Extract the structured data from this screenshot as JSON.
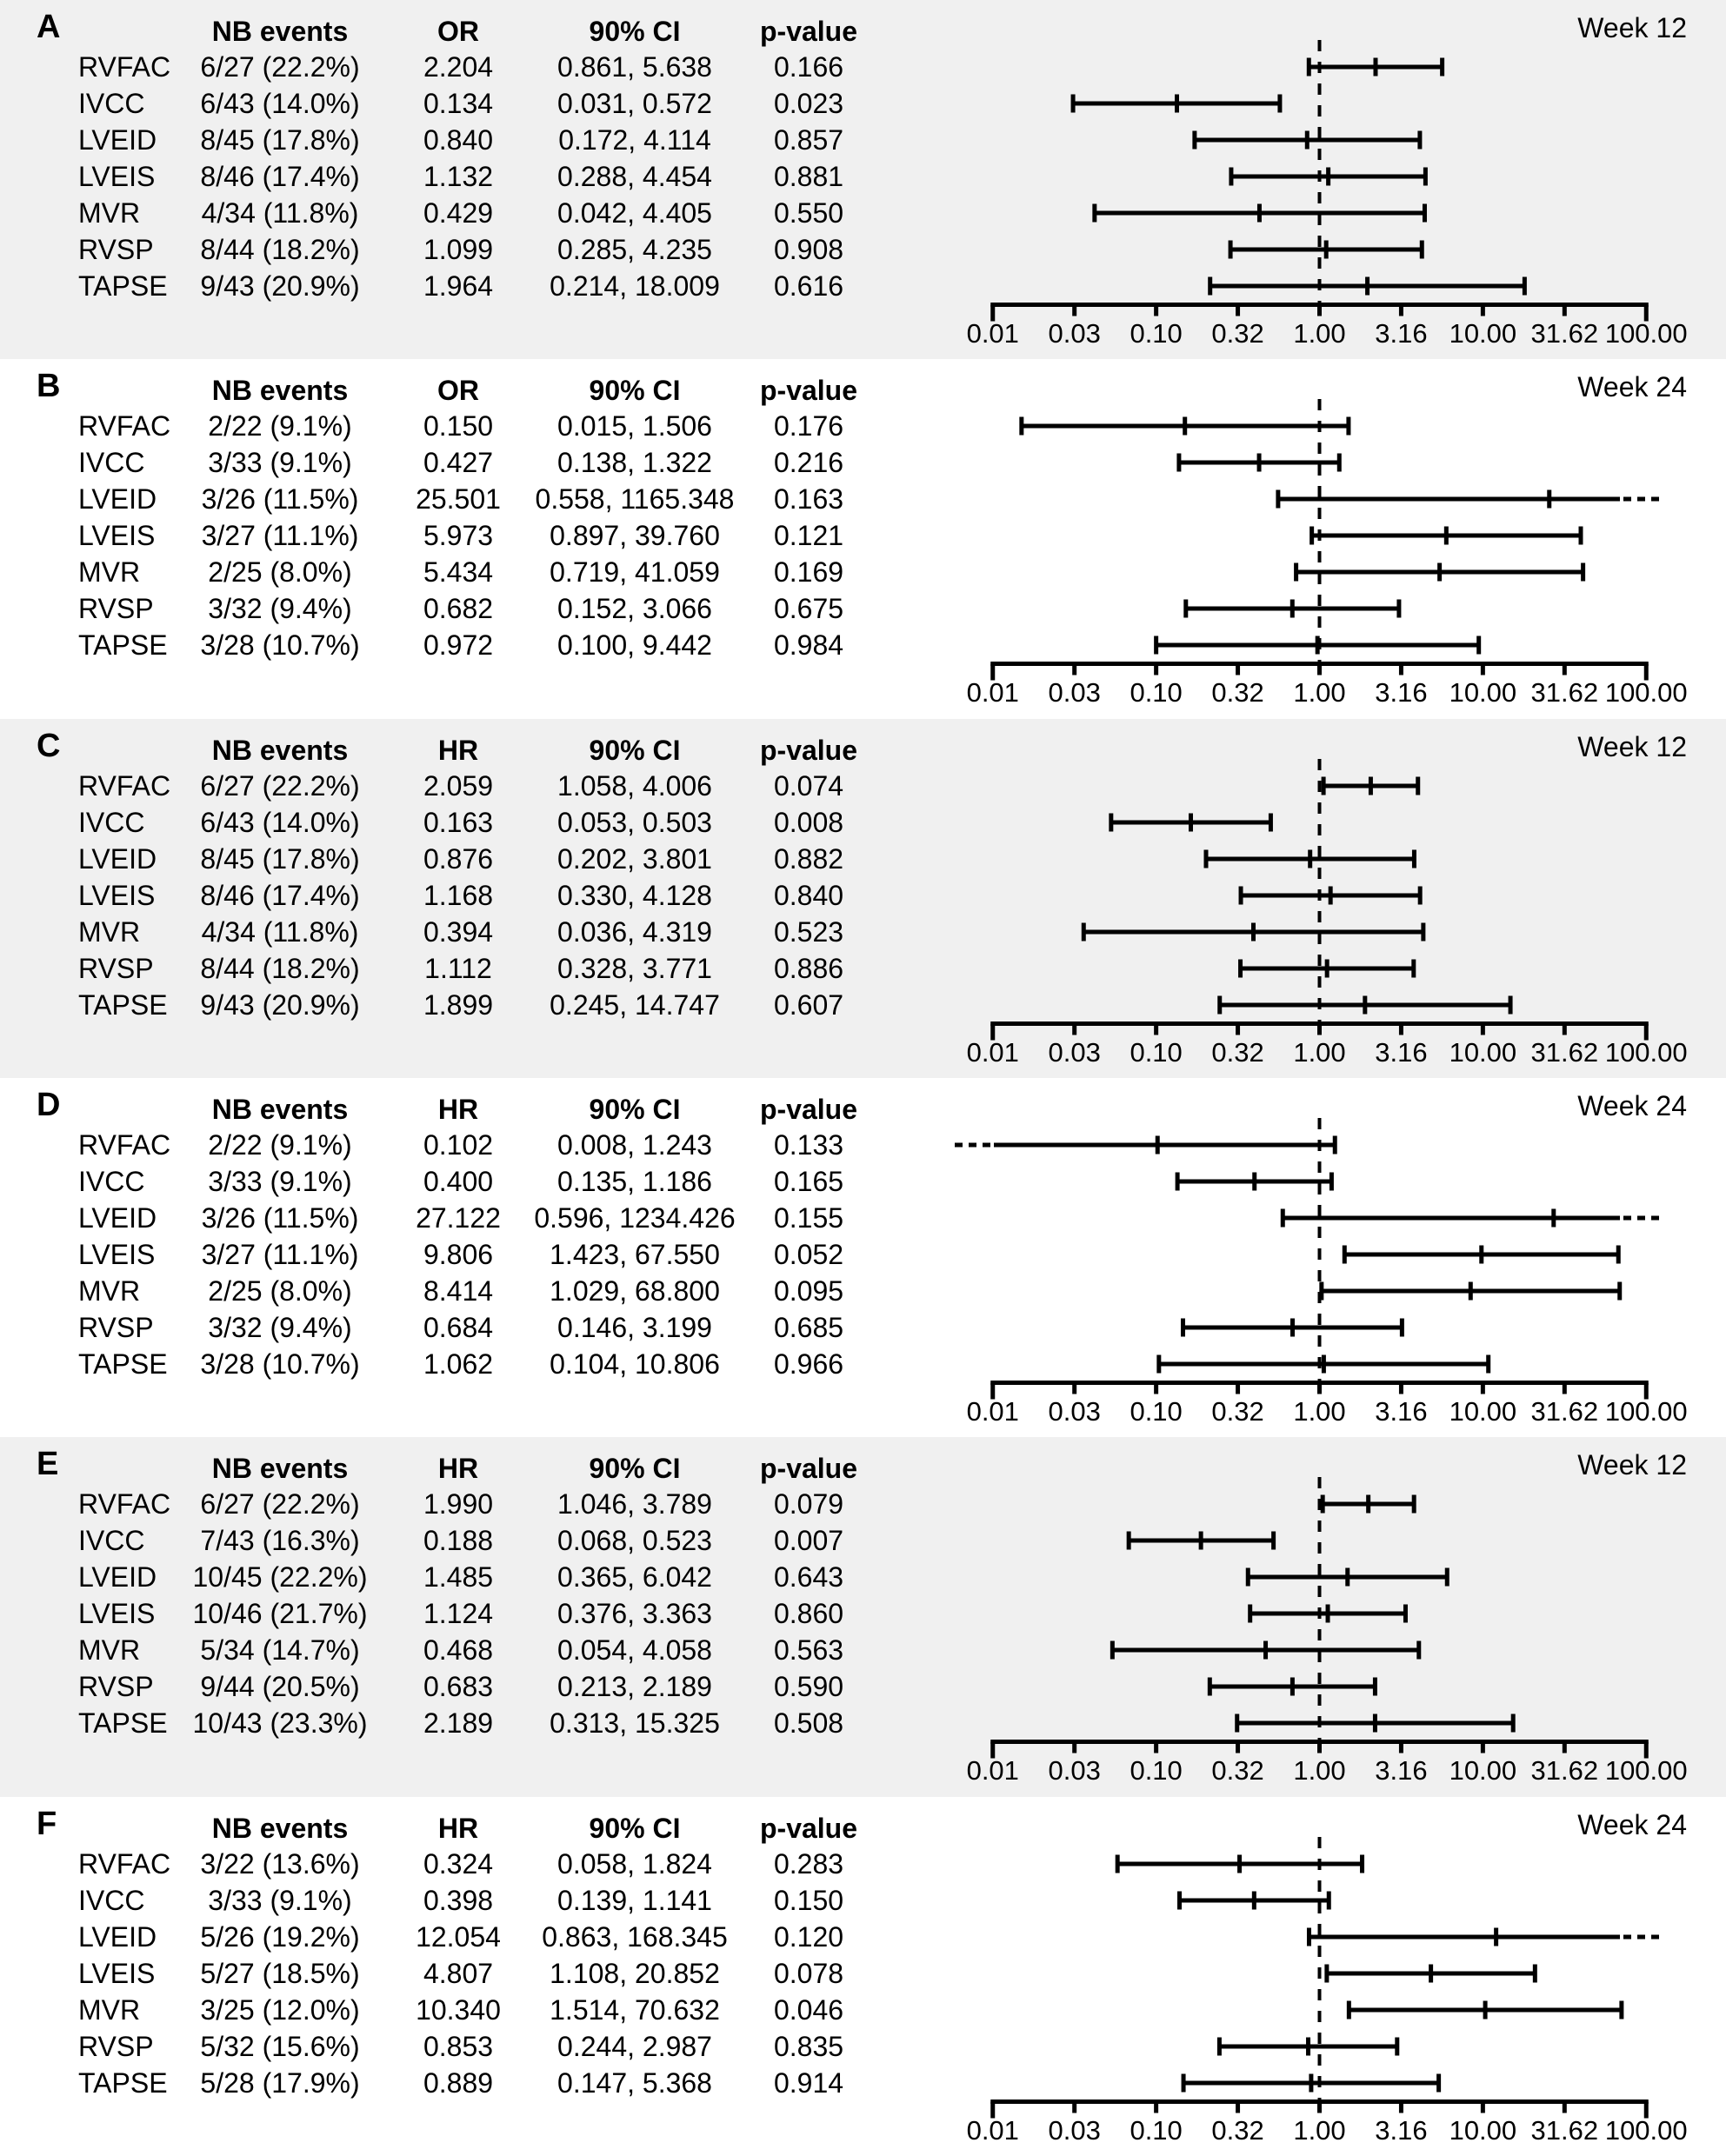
{
  "figure": {
    "panel_count": 6,
    "row_variables": [
      "RVFAC",
      "IVCC",
      "LVEID",
      "LVEIS",
      "MVR",
      "RVSP",
      "TAPSE"
    ]
  },
  "columns": {
    "nb": "NB events",
    "ci": "90% CI",
    "p": "p-value"
  },
  "axis": {
    "scale": "log",
    "min": 0.01,
    "max": 100,
    "reference_line": 1.0,
    "tick_labels": [
      "0.01",
      "0.03",
      "0.10",
      "0.32",
      "1.00",
      "3.16",
      "10.00",
      "31.62",
      "100.00"
    ]
  },
  "colors": {
    "text": "#000000",
    "bar": "#000000",
    "shaded_bg": "#f0f0f0",
    "plain_bg": "#ffffff"
  },
  "chart_data": {
    "type": "scatter",
    "subtype": "forest-errorbar",
    "x_scale": "log",
    "xlim": [
      0.01,
      100
    ],
    "x_tick_labels": [
      "0.01",
      "0.03",
      "0.10",
      "0.32",
      "1.00",
      "3.16",
      "10.00",
      "31.62",
      "100.00"
    ],
    "reference_line": 1.0,
    "row_format": [
      "label",
      "nb_events",
      "estimate",
      "ci90",
      "p_value"
    ],
    "panels": [
      {
        "letter": "A",
        "week": "Week 12",
        "effect": "OR",
        "shaded": true,
        "rows": [
          [
            "RVFAC",
            "6/27 (22.2%)",
            "2.204",
            "0.861, 5.638",
            "0.166"
          ],
          [
            "IVCC",
            "6/43 (14.0%)",
            "0.134",
            "0.031, 0.572",
            "0.023"
          ],
          [
            "LVEID",
            "8/45 (17.8%)",
            "0.840",
            "0.172, 4.114",
            "0.857"
          ],
          [
            "LVEIS",
            "8/46 (17.4%)",
            "1.132",
            "0.288, 4.454",
            "0.881"
          ],
          [
            "MVR",
            "4/34 (11.8%)",
            "0.429",
            "0.042, 4.405",
            "0.550"
          ],
          [
            "RVSP",
            "8/44 (18.2%)",
            "1.099",
            "0.285, 4.235",
            "0.908"
          ],
          [
            "TAPSE",
            "9/43 (20.9%)",
            "1.964",
            "0.214, 18.009",
            "0.616"
          ]
        ]
      },
      {
        "letter": "B",
        "week": "Week 24",
        "effect": "OR",
        "shaded": false,
        "rows": [
          [
            "RVFAC",
            "2/22 (9.1%)",
            "0.150",
            "0.015, 1.506",
            "0.176"
          ],
          [
            "IVCC",
            "3/33 (9.1%)",
            "0.427",
            "0.138, 1.322",
            "0.216"
          ],
          [
            "LVEID",
            "3/26 (11.5%)",
            "25.501",
            "0.558, 1165.348",
            "0.163"
          ],
          [
            "LVEIS",
            "3/27 (11.1%)",
            "5.973",
            "0.897, 39.760",
            "0.121"
          ],
          [
            "MVR",
            "2/25 (8.0%)",
            "5.434",
            "0.719, 41.059",
            "0.169"
          ],
          [
            "RVSP",
            "3/32 (9.4%)",
            "0.682",
            "0.152, 3.066",
            "0.675"
          ],
          [
            "TAPSE",
            "3/28 (10.7%)",
            "0.972",
            "0.100, 9.442",
            "0.984"
          ]
        ]
      },
      {
        "letter": "C",
        "week": "Week 12",
        "effect": "HR",
        "shaded": true,
        "rows": [
          [
            "RVFAC",
            "6/27 (22.2%)",
            "2.059",
            "1.058, 4.006",
            "0.074"
          ],
          [
            "IVCC",
            "6/43 (14.0%)",
            "0.163",
            "0.053, 0.503",
            "0.008"
          ],
          [
            "LVEID",
            "8/45 (17.8%)",
            "0.876",
            "0.202, 3.801",
            "0.882"
          ],
          [
            "LVEIS",
            "8/46 (17.4%)",
            "1.168",
            "0.330, 4.128",
            "0.840"
          ],
          [
            "MVR",
            "4/34 (11.8%)",
            "0.394",
            "0.036, 4.319",
            "0.523"
          ],
          [
            "RVSP",
            "8/44 (18.2%)",
            "1.112",
            "0.328, 3.771",
            "0.886"
          ],
          [
            "TAPSE",
            "9/43 (20.9%)",
            "1.899",
            "0.245, 14.747",
            "0.607"
          ]
        ]
      },
      {
        "letter": "D",
        "week": "Week 24",
        "effect": "HR",
        "shaded": false,
        "rows": [
          [
            "RVFAC",
            "2/22 (9.1%)",
            "0.102",
            "0.008, 1.243",
            "0.133"
          ],
          [
            "IVCC",
            "3/33 (9.1%)",
            "0.400",
            "0.135, 1.186",
            "0.165"
          ],
          [
            "LVEID",
            "3/26 (11.5%)",
            "27.122",
            "0.596, 1234.426",
            "0.155"
          ],
          [
            "LVEIS",
            "3/27 (11.1%)",
            "9.806",
            "1.423, 67.550",
            "0.052"
          ],
          [
            "MVR",
            "2/25 (8.0%)",
            "8.414",
            "1.029, 68.800",
            "0.095"
          ],
          [
            "RVSP",
            "3/32 (9.4%)",
            "0.684",
            "0.146, 3.199",
            "0.685"
          ],
          [
            "TAPSE",
            "3/28 (10.7%)",
            "1.062",
            "0.104, 10.806",
            "0.966"
          ]
        ]
      },
      {
        "letter": "E",
        "week": "Week 12",
        "effect": "HR",
        "shaded": true,
        "rows": [
          [
            "RVFAC",
            "6/27 (22.2%)",
            "1.990",
            "1.046, 3.789",
            "0.079"
          ],
          [
            "IVCC",
            "7/43 (16.3%)",
            "0.188",
            "0.068, 0.523",
            "0.007"
          ],
          [
            "LVEID",
            "10/45 (22.2%)",
            "1.485",
            "0.365, 6.042",
            "0.643"
          ],
          [
            "LVEIS",
            "10/46 (21.7%)",
            "1.124",
            "0.376, 3.363",
            "0.860"
          ],
          [
            "MVR",
            "5/34 (14.7%)",
            "0.468",
            "0.054, 4.058",
            "0.563"
          ],
          [
            "RVSP",
            "9/44 (20.5%)",
            "0.683",
            "0.213, 2.189",
            "0.590"
          ],
          [
            "TAPSE",
            "10/43 (23.3%)",
            "2.189",
            "0.313, 15.325",
            "0.508"
          ]
        ]
      },
      {
        "letter": "F",
        "week": "Week 24",
        "effect": "HR",
        "shaded": false,
        "rows": [
          [
            "RVFAC",
            "3/22 (13.6%)",
            "0.324",
            "0.058, 1.824",
            "0.283"
          ],
          [
            "IVCC",
            "3/33 (9.1%)",
            "0.398",
            "0.139, 1.141",
            "0.150"
          ],
          [
            "LVEID",
            "5/26 (19.2%)",
            "12.054",
            "0.863, 168.345",
            "0.120"
          ],
          [
            "LVEIS",
            "5/27 (18.5%)",
            "4.807",
            "1.108, 20.852",
            "0.078"
          ],
          [
            "MVR",
            "3/25 (12.0%)",
            "10.340",
            "1.514, 70.632",
            "0.046"
          ],
          [
            "RVSP",
            "5/32 (15.6%)",
            "0.853",
            "0.244, 2.987",
            "0.835"
          ],
          [
            "TAPSE",
            "5/28 (17.9%)",
            "0.889",
            "0.147, 5.368",
            "0.914"
          ]
        ]
      }
    ]
  }
}
